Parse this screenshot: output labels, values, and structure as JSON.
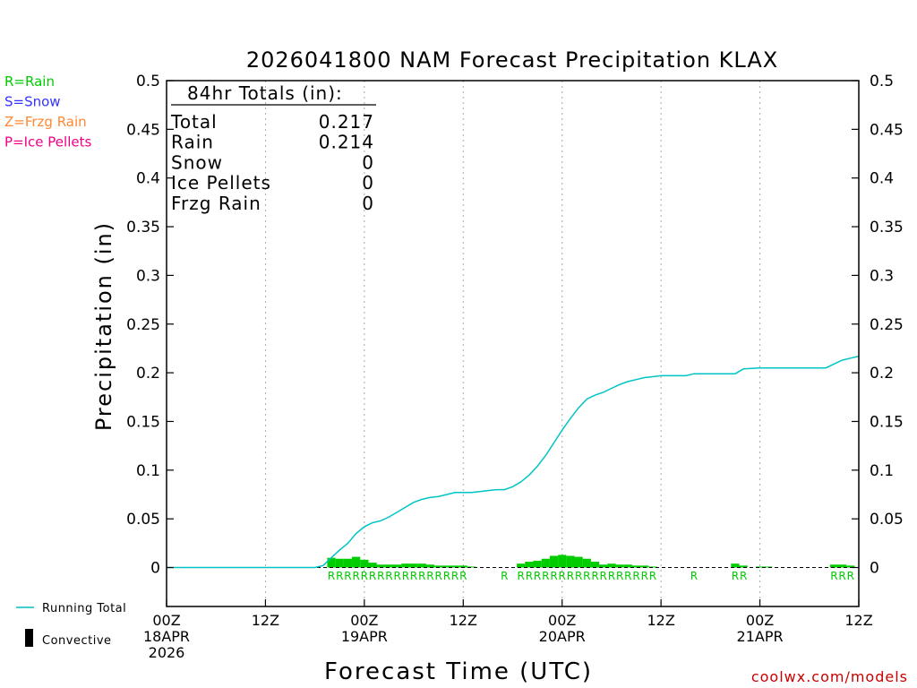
{
  "chart_data": {
    "type": "bar",
    "title": "2026041800 NAM Forecast Precipitation KLAX",
    "xlabel": "Forecast Time (UTC)",
    "ylabel": "Precipitation (in)",
    "ylim": [
      -0.04,
      0.5
    ],
    "xlim": [
      0,
      84
    ],
    "y_ticks": [
      {
        "v": 0,
        "label": "0"
      },
      {
        "v": 0.05,
        "label": "0.05"
      },
      {
        "v": 0.1,
        "label": "0.1"
      },
      {
        "v": 0.15,
        "label": "0.15"
      },
      {
        "v": 0.2,
        "label": "0.2"
      },
      {
        "v": 0.25,
        "label": "0.25"
      },
      {
        "v": 0.3,
        "label": "0.3"
      },
      {
        "v": 0.35,
        "label": "0.35"
      },
      {
        "v": 0.4,
        "label": "0.4"
      },
      {
        "v": 0.45,
        "label": "0.45"
      },
      {
        "v": 0.5,
        "label": "0.5"
      }
    ],
    "x_ticks": [
      {
        "h": 0,
        "lines": [
          "00Z",
          "18APR",
          "2026"
        ]
      },
      {
        "h": 12,
        "lines": [
          "12Z"
        ]
      },
      {
        "h": 24,
        "lines": [
          "00Z",
          "19APR"
        ]
      },
      {
        "h": 36,
        "lines": [
          "12Z"
        ]
      },
      {
        "h": 48,
        "lines": [
          "00Z",
          "20APR"
        ]
      },
      {
        "h": 60,
        "lines": [
          "12Z"
        ]
      },
      {
        "h": 72,
        "lines": [
          "00Z",
          "21APR"
        ]
      },
      {
        "h": 84,
        "lines": [
          "12Z"
        ]
      }
    ],
    "gridlines_hours": [
      12,
      24,
      36,
      48,
      60,
      72
    ],
    "totals": {
      "header": "84hr Totals (in):",
      "rows": [
        {
          "label": "Total",
          "value": "0.217"
        },
        {
          "label": "Rain",
          "value": "0.214"
        },
        {
          "label": "Snow",
          "value": "0"
        },
        {
          "label": "Ice Pellets",
          "value": "0"
        },
        {
          "label": "Frzg Rain",
          "value": "0"
        }
      ]
    },
    "legend": [
      {
        "text": "R=Rain",
        "color": "#00cc00"
      },
      {
        "text": "S=Snow",
        "color": "#3333ff"
      },
      {
        "text": "Z=Frzg Rain",
        "color": "#ff8833"
      },
      {
        "text": "P=Ice Pellets",
        "color": "#ee0088"
      }
    ],
    "bottom_legend": {
      "running_total": "Running Total",
      "convective": "Convective"
    },
    "series": [
      {
        "name": "Hourly Rain",
        "kind": "bar",
        "color": "#00cc00",
        "x": [
          20,
          21,
          22,
          23,
          24,
          25,
          26,
          27,
          28,
          29,
          30,
          31,
          32,
          33,
          34,
          35,
          36,
          37,
          43,
          44,
          45,
          46,
          47,
          48,
          49,
          50,
          51,
          52,
          53,
          54,
          55,
          56,
          57,
          58,
          59,
          69,
          70,
          72,
          73,
          81,
          82,
          83
        ],
        "values": [
          0.01,
          0.009,
          0.009,
          0.011,
          0.008,
          0.005,
          0.003,
          0.003,
          0.003,
          0.004,
          0.004,
          0.004,
          0.003,
          0.002,
          0.002,
          0.002,
          0.002,
          0.001,
          0.004,
          0.006,
          0.007,
          0.009,
          0.012,
          0.013,
          0.012,
          0.011,
          0.009,
          0.006,
          0.003,
          0.004,
          0.003,
          0.003,
          0.002,
          0.002,
          0.001,
          0.004,
          0.002,
          0.001,
          0.001,
          0.003,
          0.003,
          0.002
        ]
      },
      {
        "name": "Running Total",
        "kind": "line",
        "color": "#00c4c4",
        "x": [
          0,
          18,
          19,
          20,
          21,
          22,
          23,
          24,
          25,
          26,
          27,
          28,
          29,
          30,
          31,
          32,
          33,
          34,
          35,
          36,
          37,
          38,
          39,
          40,
          41,
          42,
          43,
          44,
          45,
          46,
          47,
          48,
          49,
          50,
          51,
          52,
          53,
          54,
          55,
          56,
          57,
          58,
          59,
          60,
          62,
          63,
          64,
          66,
          68,
          69,
          70,
          72,
          80,
          81,
          82,
          83,
          84
        ],
        "values": [
          0,
          0,
          0.002,
          0.01,
          0.018,
          0.025,
          0.035,
          0.042,
          0.046,
          0.048,
          0.052,
          0.057,
          0.062,
          0.067,
          0.07,
          0.072,
          0.073,
          0.075,
          0.077,
          0.077,
          0.077,
          0.078,
          0.079,
          0.08,
          0.08,
          0.083,
          0.088,
          0.095,
          0.104,
          0.115,
          0.128,
          0.141,
          0.153,
          0.164,
          0.173,
          0.177,
          0.18,
          0.184,
          0.188,
          0.191,
          0.193,
          0.195,
          0.196,
          0.197,
          0.197,
          0.197,
          0.199,
          0.199,
          0.199,
          0.199,
          0.204,
          0.205,
          0.205,
          0.209,
          0.213,
          0.215,
          0.217
        ]
      }
    ],
    "ptype_markers": {
      "letter": "R",
      "color": "#00cc00",
      "hours": [
        20,
        21,
        22,
        23,
        24,
        25,
        26,
        27,
        28,
        29,
        30,
        31,
        32,
        33,
        34,
        35,
        36,
        41,
        43,
        44,
        45,
        46,
        47,
        48,
        49,
        50,
        51,
        52,
        53,
        54,
        55,
        56,
        57,
        58,
        59,
        64,
        69,
        70,
        81,
        82,
        83
      ]
    },
    "footer": "coolwx.com/models",
    "colors": {
      "axis": "#000000",
      "grid": "#aaaaaa",
      "footer": "#cc0000",
      "bar": "#00cc00",
      "line": "#00c4c4"
    }
  }
}
